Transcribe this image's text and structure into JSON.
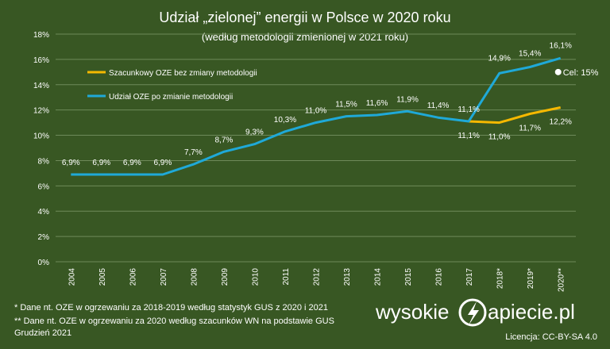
{
  "chart_data": {
    "type": "line",
    "title": "Udział „zielonej” energii w Polsce w 2020 roku",
    "subtitle": "(według metodologii zmienionej w 2021 roku)",
    "categories": [
      "2004",
      "2005",
      "2006",
      "2007",
      "2008",
      "2009",
      "2010",
      "2011",
      "2012",
      "2013",
      "2014",
      "2015",
      "2016",
      "2017",
      "2018*",
      "2019*",
      "2020**"
    ],
    "ylim": [
      0,
      18
    ],
    "yticks": [
      0,
      2,
      4,
      6,
      8,
      10,
      12,
      14,
      16,
      18
    ],
    "ytick_labels": [
      "0%",
      "2%",
      "4%",
      "6%",
      "8%",
      "10%",
      "12%",
      "14%",
      "16%",
      "18%"
    ],
    "series": [
      {
        "name": "Udział OZE po zmianie metodologii",
        "color": "#1fa9d8",
        "values": [
          6.9,
          6.9,
          6.9,
          6.9,
          7.7,
          8.7,
          9.3,
          10.3,
          11.0,
          11.5,
          11.6,
          11.9,
          11.4,
          11.1,
          14.9,
          15.4,
          16.1
        ],
        "labels": [
          "6,9%",
          "6,9%",
          "6,9%",
          "6,9%",
          "7,7%",
          "8,7%",
          "9,3%",
          "10,3%",
          "11,0%",
          "11,5%",
          "11,6%",
          "11,9%",
          "11,4%",
          "11,1%",
          "14,9%",
          "15,4%",
          "16,1%"
        ]
      },
      {
        "name": "Szacunkowy OZE bez zmiany metodologii",
        "color": "#f5b800",
        "values": [
          null,
          null,
          null,
          null,
          null,
          null,
          null,
          null,
          null,
          null,
          null,
          null,
          null,
          11.1,
          11.0,
          11.7,
          12.2
        ],
        "labels": [
          "",
          "",
          "",
          "",
          "",
          "",
          "",
          "",
          "",
          "",
          "",
          "",
          "",
          "11,1%",
          "11,0%",
          "11,7%",
          "12,2%"
        ]
      }
    ],
    "target": {
      "label": "Cel: 15%",
      "value": 15,
      "at": "2020**"
    },
    "legend_order": [
      "Szacunkowy OZE bez zmiany metodologii",
      "Udział OZE po zmianie metodologii"
    ],
    "legend_position": "top-left",
    "grid": true
  },
  "footnotes": [
    "* Dane nt. OZE w ogrzewaniu za 2018-2019 według statystyk GUS z 2020 i 2021",
    "**  Dane nt. OZE w ogrzewaniu za 2020 według szacunków WN na podstawie GUS",
    "Grudzień 2021"
  ],
  "brand": {
    "left": "wysokie",
    "right": "apiecie.pl"
  },
  "license": "Licencja: CC-BY-SA 4.0",
  "colors": {
    "background": "#385723",
    "grid": "#6e8a5a",
    "text": "#ffffff"
  }
}
